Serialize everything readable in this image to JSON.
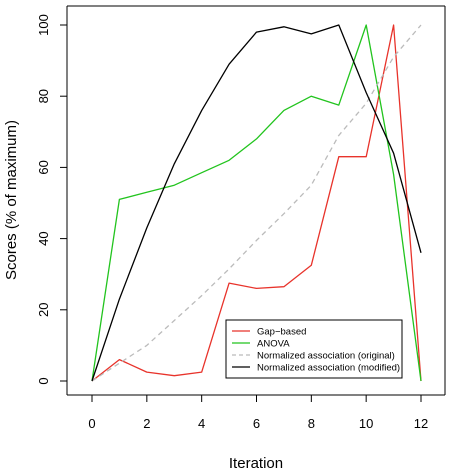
{
  "chart_data": {
    "type": "line",
    "title": "",
    "xlabel": "Iteration",
    "ylabel": "Scores (% of maximum)",
    "xlim": [
      0,
      12
    ],
    "ylim": [
      0,
      100
    ],
    "x_ticks": [
      0,
      2,
      4,
      6,
      8,
      10,
      12
    ],
    "y_ticks": [
      0,
      20,
      40,
      60,
      80,
      100
    ],
    "grid": false,
    "legend_position": "bottom-right",
    "x": [
      0,
      1,
      2,
      3,
      4,
      5,
      6,
      7,
      8,
      9,
      10,
      11,
      12
    ],
    "series": [
      {
        "name": "Gap−based",
        "color": "#e8332b",
        "dash": "solid",
        "values": [
          0,
          6,
          2.5,
          1.5,
          2.5,
          27.5,
          26,
          26.5,
          32.5,
          63,
          63,
          100,
          0
        ]
      },
      {
        "name": "ANOVA",
        "color": "#22c41e",
        "dash": "solid",
        "values": [
          0,
          51,
          53,
          55,
          58.5,
          62,
          68,
          76,
          80,
          77.5,
          100,
          58,
          0
        ]
      },
      {
        "name": "Normalized association (original)",
        "color": "#bbbbbb",
        "dash": "dashed",
        "values": [
          0,
          5,
          10,
          17,
          24,
          31.5,
          39.5,
          47,
          55,
          69,
          78,
          91,
          100
        ]
      },
      {
        "name": "Normalized association (modified)",
        "color": "#000000",
        "dash": "solid",
        "values": [
          0,
          23,
          43,
          61,
          76,
          89,
          98,
          99.5,
          97.5,
          100,
          81,
          64,
          36
        ]
      }
    ]
  }
}
